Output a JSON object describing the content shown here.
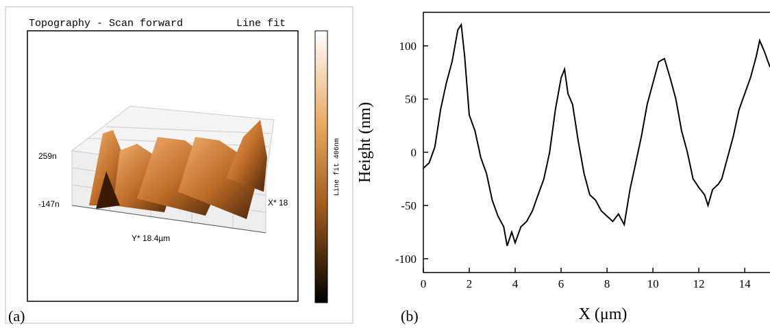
{
  "panel_a": {
    "title": "Topography - Scan forward",
    "mode": "Line fit",
    "z_max_label": "259n",
    "z_min_label": "-147n",
    "x_label": "X* 18",
    "y_label": "Y* 18.4µm",
    "colorbar_label": "Line fit 406nm",
    "panel_label": "(a)"
  },
  "chart_data": {
    "type": "line",
    "panel_label": "(b)",
    "xlabel": "X (μm)",
    "ylabel": "Height (nm)",
    "x": [
      0,
      0.25,
      0.5,
      0.75,
      1.0,
      1.25,
      1.5,
      1.65,
      1.8,
      2.0,
      2.25,
      2.5,
      2.75,
      3.0,
      3.25,
      3.5,
      3.65,
      3.85,
      4.0,
      4.25,
      4.5,
      4.75,
      5.0,
      5.25,
      5.5,
      5.75,
      6.0,
      6.15,
      6.3,
      6.5,
      6.75,
      7.0,
      7.25,
      7.5,
      7.75,
      8.0,
      8.25,
      8.5,
      8.75,
      9.0,
      9.25,
      9.5,
      9.75,
      10.0,
      10.25,
      10.5,
      10.75,
      11.0,
      11.25,
      11.5,
      11.75,
      12.0,
      12.25,
      12.4,
      12.6,
      12.85,
      13.0,
      13.25,
      13.5,
      13.75,
      14.0,
      14.25,
      14.5,
      14.65,
      14.85,
      15.1
    ],
    "series": [
      {
        "color": "#000000",
        "values": [
          -15,
          -10,
          5,
          40,
          65,
          85,
          115,
          120,
          90,
          35,
          20,
          -5,
          -20,
          -45,
          -60,
          -70,
          -88,
          -75,
          -85,
          -70,
          -65,
          -55,
          -40,
          -25,
          0,
          40,
          70,
          78,
          55,
          45,
          10,
          -20,
          -40,
          -45,
          -55,
          -60,
          -65,
          -58,
          -68,
          -35,
          -10,
          15,
          45,
          65,
          85,
          88,
          70,
          50,
          20,
          0,
          -25,
          -33,
          -40,
          -50,
          -35,
          -30,
          -25,
          -5,
          15,
          40,
          55,
          70,
          90,
          105,
          95,
          80
        ]
      }
    ],
    "xlim": [
      0,
      15.1
    ],
    "ylim": [
      -113,
      131.5
    ],
    "xticks": [
      0,
      2,
      4,
      6,
      8,
      10,
      12,
      14
    ],
    "yticks": [
      -100,
      -50,
      0,
      50,
      100
    ]
  }
}
